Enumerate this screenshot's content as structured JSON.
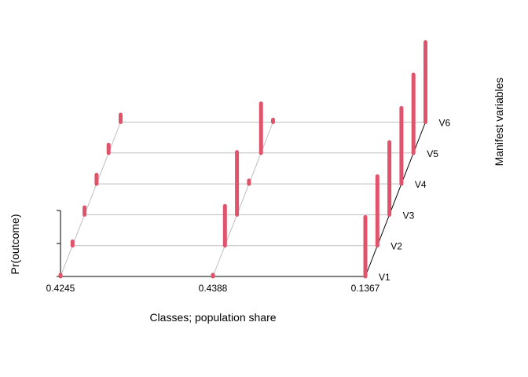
{
  "chart_data": {
    "type": "lca-3d-bar",
    "xlabel": "Classes; population share",
    "ylabel": "Pr(outcome)",
    "zlabel": "Manifest variables",
    "classes": [
      "0.4245",
      "0.4388",
      "0.1367"
    ],
    "variables": [
      "V1",
      "V2",
      "V3",
      "V4",
      "V5",
      "V6"
    ],
    "ylim": [
      0,
      1
    ],
    "bar_color": "#DF536B",
    "series": [
      {
        "class": "0.4245",
        "values": [
          0.02,
          0.05,
          0.09,
          0.11,
          0.1,
          0.09
        ]
      },
      {
        "class": "0.4388",
        "values": [
          0.02,
          0.48,
          0.76,
          0.04,
          0.6,
          0.03
        ]
      },
      {
        "class": "0.1367",
        "values": [
          0.72,
          0.84,
          0.88,
          0.92,
          0.95,
          0.97
        ]
      }
    ]
  }
}
